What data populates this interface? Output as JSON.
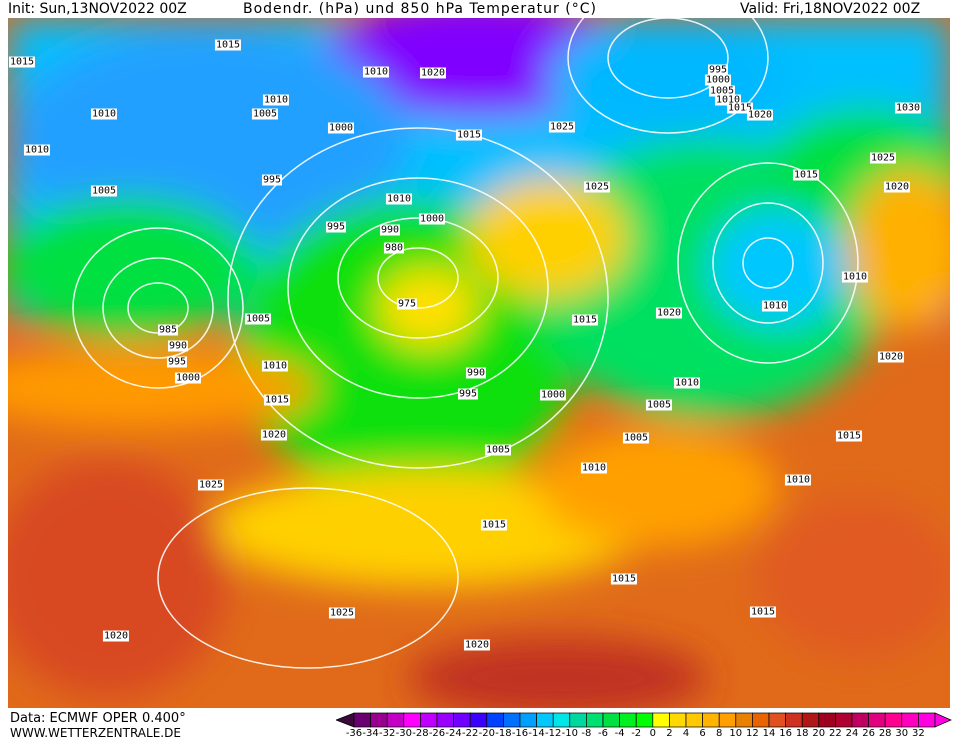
{
  "header": {
    "init": "Init: Sun,13NOV2022 00Z",
    "title": "Bodendr. (hPa) und 850 hPa Temperatur (°C)",
    "valid": "Valid: Fri,18NOV2022 00Z"
  },
  "footer": {
    "data_source": "Data: ECMWF OPER 0.400°",
    "website": "WWW.WETTERZENTRALE.DE"
  },
  "isobar_labels": [
    "1015",
    "1015",
    "1010",
    "1020",
    "1010",
    "1005",
    "1010",
    "1000",
    "1015",
    "1025",
    "995",
    "1000",
    "1005",
    "1010",
    "1015",
    "1020",
    "1030",
    "1010",
    "1025",
    "1015",
    "1005",
    "995",
    "1020",
    "1025",
    "1010",
    "1000",
    "995",
    "990",
    "980",
    "975",
    "1010",
    "1005",
    "985",
    "990",
    "995",
    "1000",
    "1015",
    "1020",
    "1010",
    "1020",
    "1010",
    "990",
    "995",
    "1000",
    "1010",
    "1005",
    "1015",
    "1020",
    "1005",
    "1015",
    "1005",
    "1010",
    "1010",
    "1025",
    "1015",
    "1015",
    "1025",
    "1015",
    "1020",
    "1020"
  ],
  "legend": {
    "ticks": [
      "-36",
      "-34",
      "-32",
      "-30",
      "-28",
      "-26",
      "-24",
      "-22",
      "-20",
      "-18",
      "-16",
      "-14",
      "-12",
      "-10",
      "-8",
      "-6",
      "-4",
      "-2",
      "0",
      "2",
      "4",
      "6",
      "8",
      "10",
      "12",
      "14",
      "16",
      "18",
      "20",
      "22",
      "24",
      "26",
      "28",
      "30",
      "32"
    ],
    "colors": [
      "#3a0a3a",
      "#6a0070",
      "#9a0090",
      "#c400c4",
      "#ff00ff",
      "#c000ff",
      "#9a00ff",
      "#7000ff",
      "#3c00ff",
      "#0040ff",
      "#0070ff",
      "#00a0ff",
      "#00c8ff",
      "#00e6e6",
      "#00d8a0",
      "#00e070",
      "#00e040",
      "#00f020",
      "#00ff00",
      "#ffff00",
      "#ffd800",
      "#ffc800",
      "#ffb400",
      "#ffa000",
      "#e88000",
      "#e86400",
      "#e05020",
      "#d03020",
      "#b01818",
      "#a00020",
      "#b00030",
      "#c00060",
      "#e00080",
      "#ff0090",
      "#ff00c0",
      "#ff00e0"
    ]
  }
}
